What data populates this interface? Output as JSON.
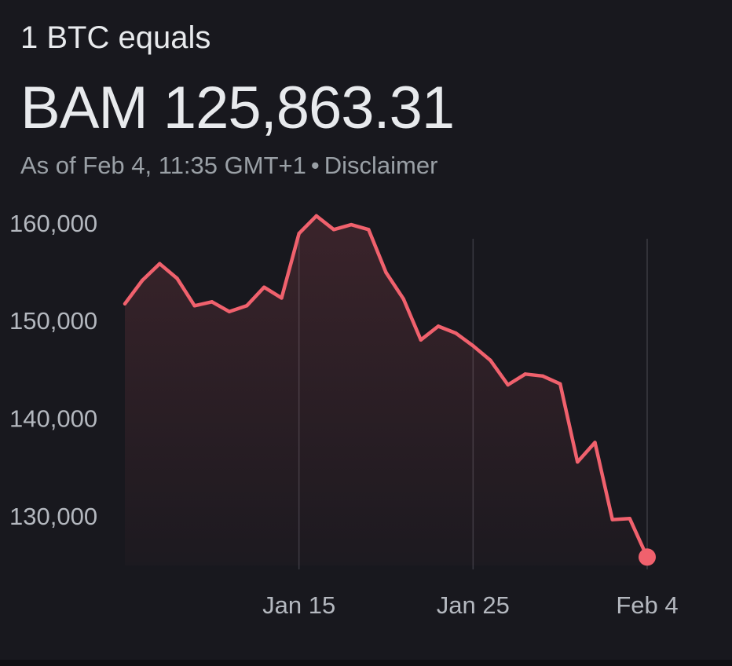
{
  "header": {
    "subtitle": "1 BTC equals",
    "price": "BAM 125,863.31",
    "as_of": "As of Feb 4, 11:35 GMT+1",
    "separator": "•",
    "disclaimer": "Disclaimer"
  },
  "colors": {
    "background": "#18181e",
    "line": "#f0616d",
    "grid": "#3a3a42",
    "axis_text": "#b4b8bf"
  },
  "chart_data": {
    "type": "area",
    "title": "",
    "xlabel": "",
    "ylabel": "",
    "ylim": [
      125000,
      162000
    ],
    "yticks": [
      {
        "label": "160,000",
        "value": 160000
      },
      {
        "label": "150,000",
        "value": 150000
      },
      {
        "label": "140,000",
        "value": 140000
      },
      {
        "label": "130,000",
        "value": 130000
      }
    ],
    "xticks": [
      {
        "label": "Jan 15",
        "x": 10
      },
      {
        "label": "Jan 25",
        "x": 20
      },
      {
        "label": "Feb 4",
        "x": 30
      }
    ],
    "x": [
      0,
      1,
      2,
      3,
      4,
      5,
      6,
      7,
      8,
      9,
      10,
      11,
      12,
      13,
      14,
      15,
      16,
      17,
      18,
      19,
      20,
      21,
      22,
      23,
      24,
      25,
      26,
      27,
      28,
      29,
      30
    ],
    "values": [
      151800,
      154200,
      155900,
      154400,
      151600,
      152000,
      151000,
      151600,
      153500,
      152400,
      159000,
      160800,
      159400,
      159900,
      159400,
      155000,
      152300,
      148100,
      149500,
      148800,
      147500,
      146000,
      143500,
      144600,
      144400,
      143600,
      135600,
      137600,
      129700,
      129800,
      125863.31
    ],
    "last_point_marker": true
  }
}
